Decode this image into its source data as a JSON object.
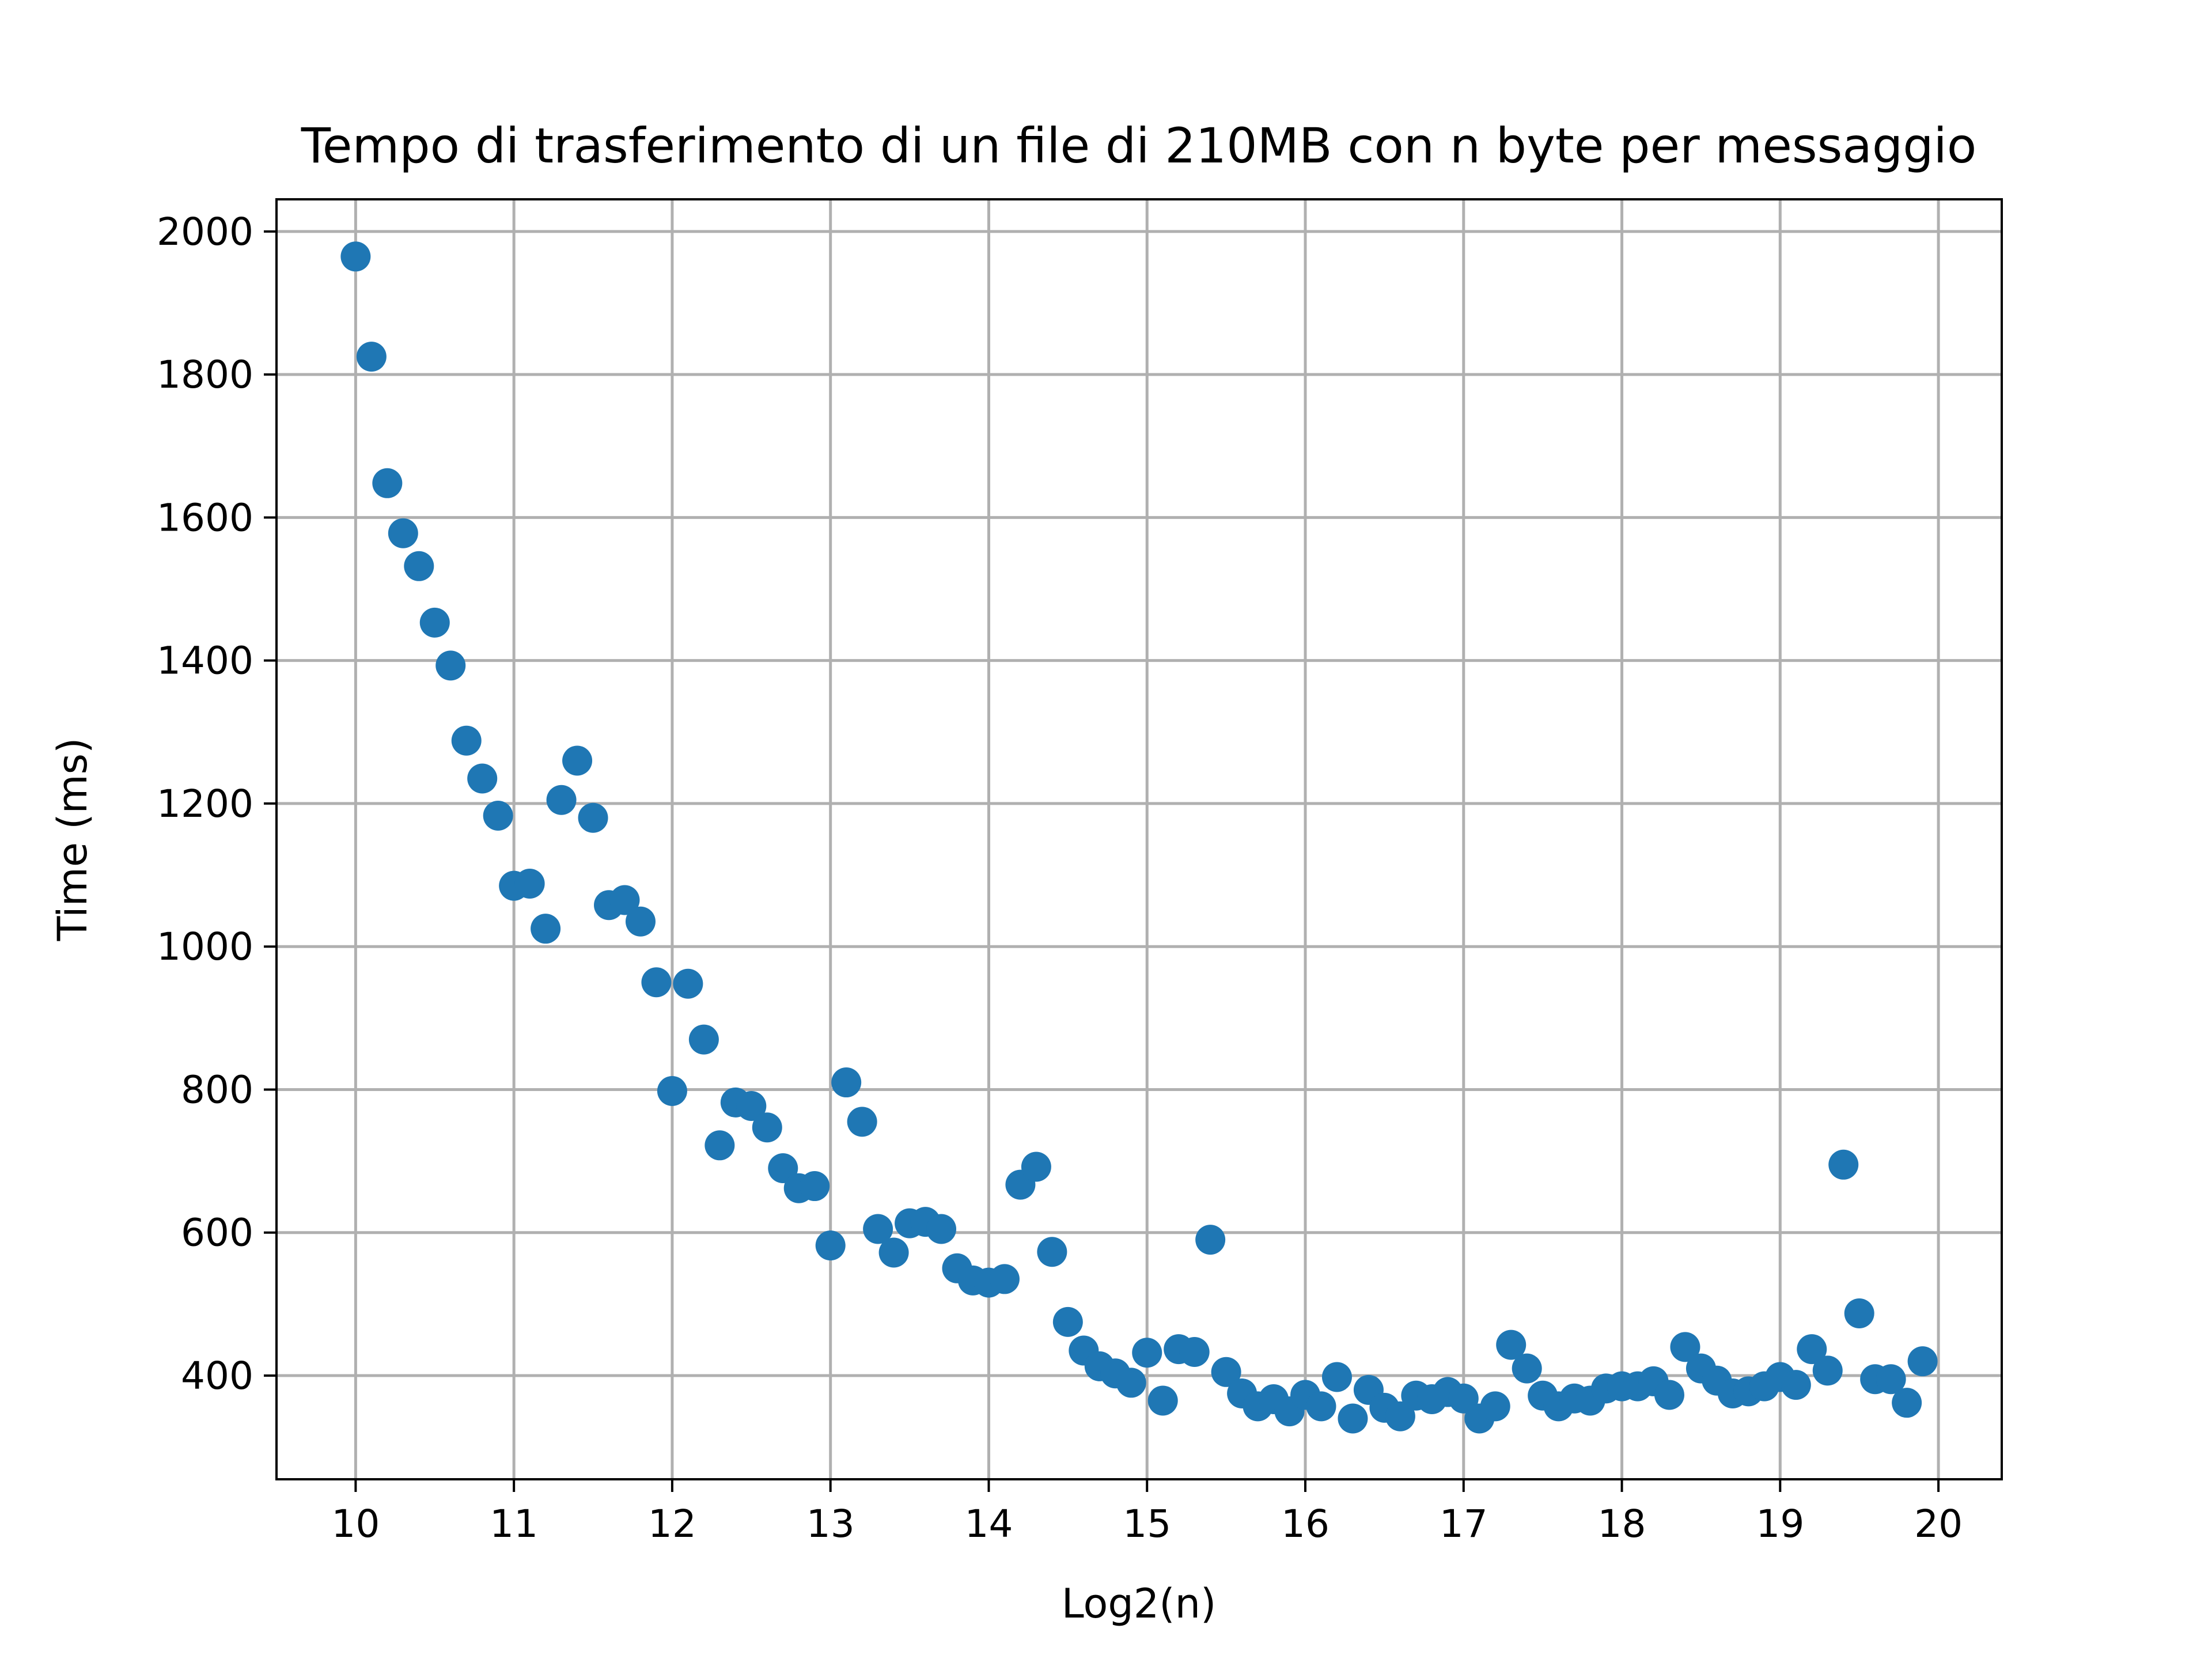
{
  "chart_data": {
    "type": "scatter",
    "title": "Tempo di trasferimento di un file di 210MB con n byte per messaggio",
    "xlabel": "Log2(n)",
    "ylabel": "Time (ms)",
    "xlim": [
      9.5,
      20.4
    ],
    "ylim": [
      255,
      2045
    ],
    "xticks": [
      10,
      11,
      12,
      13,
      14,
      15,
      16,
      17,
      18,
      19,
      20
    ],
    "xtick_labels": [
      "10",
      "11",
      "12",
      "13",
      "14",
      "15",
      "16",
      "17",
      "18",
      "19",
      "20"
    ],
    "yticks": [
      400,
      600,
      800,
      1000,
      1200,
      1400,
      1600,
      1800,
      2000
    ],
    "ytick_labels": [
      "400",
      "600",
      "800",
      "1000",
      "1200",
      "1400",
      "1600",
      "1800",
      "2000"
    ],
    "grid": true,
    "color": "#1f77b4",
    "series": [
      {
        "x": [
          10.0,
          10.1,
          10.2,
          10.3,
          10.4,
          10.5,
          10.6,
          10.7,
          10.8,
          10.9,
          11.0,
          11.1,
          11.2,
          11.3,
          11.4,
          11.5,
          11.6,
          11.7,
          11.8,
          11.9,
          12.0,
          12.1,
          12.2,
          12.3,
          12.4,
          12.5,
          12.6,
          12.7,
          12.8,
          12.9,
          13.0,
          13.1,
          13.2,
          13.3,
          13.4,
          13.5,
          13.6,
          13.7,
          13.8,
          13.9,
          14.0,
          14.1,
          14.2,
          14.3,
          14.4,
          14.5,
          14.6,
          14.7,
          14.8,
          14.9,
          15.0,
          15.1,
          15.2,
          15.3,
          15.4,
          15.5,
          15.6,
          15.7,
          15.8,
          15.9,
          16.0,
          16.1,
          16.2,
          16.3,
          16.4,
          16.5,
          16.6,
          16.7,
          16.8,
          16.9,
          17.0,
          17.1,
          17.2,
          17.3,
          17.4,
          17.5,
          17.6,
          17.7,
          17.8,
          17.9,
          18.0,
          18.1,
          18.2,
          18.3,
          18.4,
          18.5,
          18.6,
          18.7,
          18.8,
          18.9,
          19.0,
          19.1,
          19.2,
          19.3,
          19.4,
          19.5,
          19.6,
          19.7,
          19.8,
          19.9
        ],
        "y": [
          1965,
          1825,
          1648,
          1578,
          1532,
          1453,
          1393,
          1288,
          1235,
          1183,
          1085,
          1088,
          1025,
          1205,
          1260,
          1180,
          1058,
          1065,
          1035,
          950,
          798,
          948,
          870,
          722,
          782,
          777,
          747,
          690,
          662,
          665,
          582,
          810,
          755,
          605,
          572,
          613,
          615,
          605,
          550,
          533,
          530,
          535,
          667,
          692,
          573,
          475,
          435,
          413,
          403,
          390,
          432,
          365,
          437,
          433,
          590,
          405,
          375,
          357,
          367,
          350,
          373,
          357,
          398,
          340,
          380,
          355,
          343,
          372,
          367,
          377,
          368,
          340,
          357,
          443,
          410,
          372,
          357,
          368,
          365,
          382,
          385,
          385,
          392,
          373,
          440,
          410,
          393,
          375,
          378,
          385,
          398,
          387,
          437,
          407,
          695,
          487,
          395,
          395,
          362,
          420
        ]
      }
    ]
  }
}
